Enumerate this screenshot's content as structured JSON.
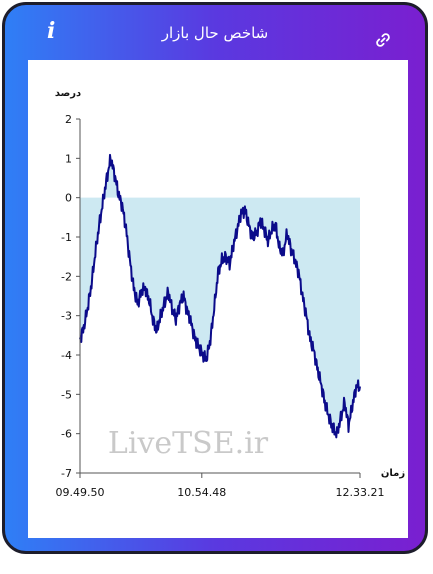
{
  "header": {
    "title": "شاخص حال بازار",
    "info_icon": "info-icon",
    "link_icon": "link-icon"
  },
  "watermark": "LiveTSE.ir",
  "colors": {
    "gradient_start": "#2f7ff6",
    "gradient_end": "#7a1fd0",
    "line": "#0b0b8a",
    "fill": "#cde9f2"
  },
  "chart_data": {
    "type": "area",
    "title": "",
    "ylabel": "درصد",
    "xlabel": "زمان",
    "ylim": [
      -7,
      2
    ],
    "yticks": [
      "2",
      "1",
      "0",
      "-1",
      "-2",
      "-3",
      "-4",
      "-5",
      "-6",
      "-7"
    ],
    "xticks": [
      "09.49.50",
      "10.54.48",
      "12.33.21"
    ],
    "grid": false,
    "series": [
      {
        "values": [
          -3.6,
          -3.3,
          -2.8,
          -2.2,
          -1.4,
          -0.7,
          -0.1,
          0.5,
          1.0,
          0.6,
          0.1,
          -0.2,
          -0.8,
          -1.6,
          -2.3,
          -2.7,
          -2.4,
          -2.3,
          -2.6,
          -3.1,
          -3.4,
          -3.0,
          -2.7,
          -2.4,
          -2.8,
          -3.1,
          -2.7,
          -2.5,
          -2.9,
          -3.2,
          -3.6,
          -3.8,
          -4.0,
          -4.1,
          -3.6,
          -2.8,
          -1.9,
          -1.6,
          -1.5,
          -1.7,
          -1.2,
          -0.8,
          -0.4,
          -0.3,
          -0.7,
          -1.0,
          -0.9,
          -0.6,
          -0.8,
          -1.1,
          -0.8,
          -0.7,
          -1.3,
          -1.4,
          -0.9,
          -1.3,
          -1.6,
          -1.9,
          -2.5,
          -3.0,
          -3.6,
          -3.9,
          -4.4,
          -4.8,
          -5.3,
          -5.6,
          -5.9,
          -6.0,
          -5.6,
          -5.2,
          -5.8,
          -5.3,
          -4.8,
          -4.8
        ]
      }
    ]
  }
}
